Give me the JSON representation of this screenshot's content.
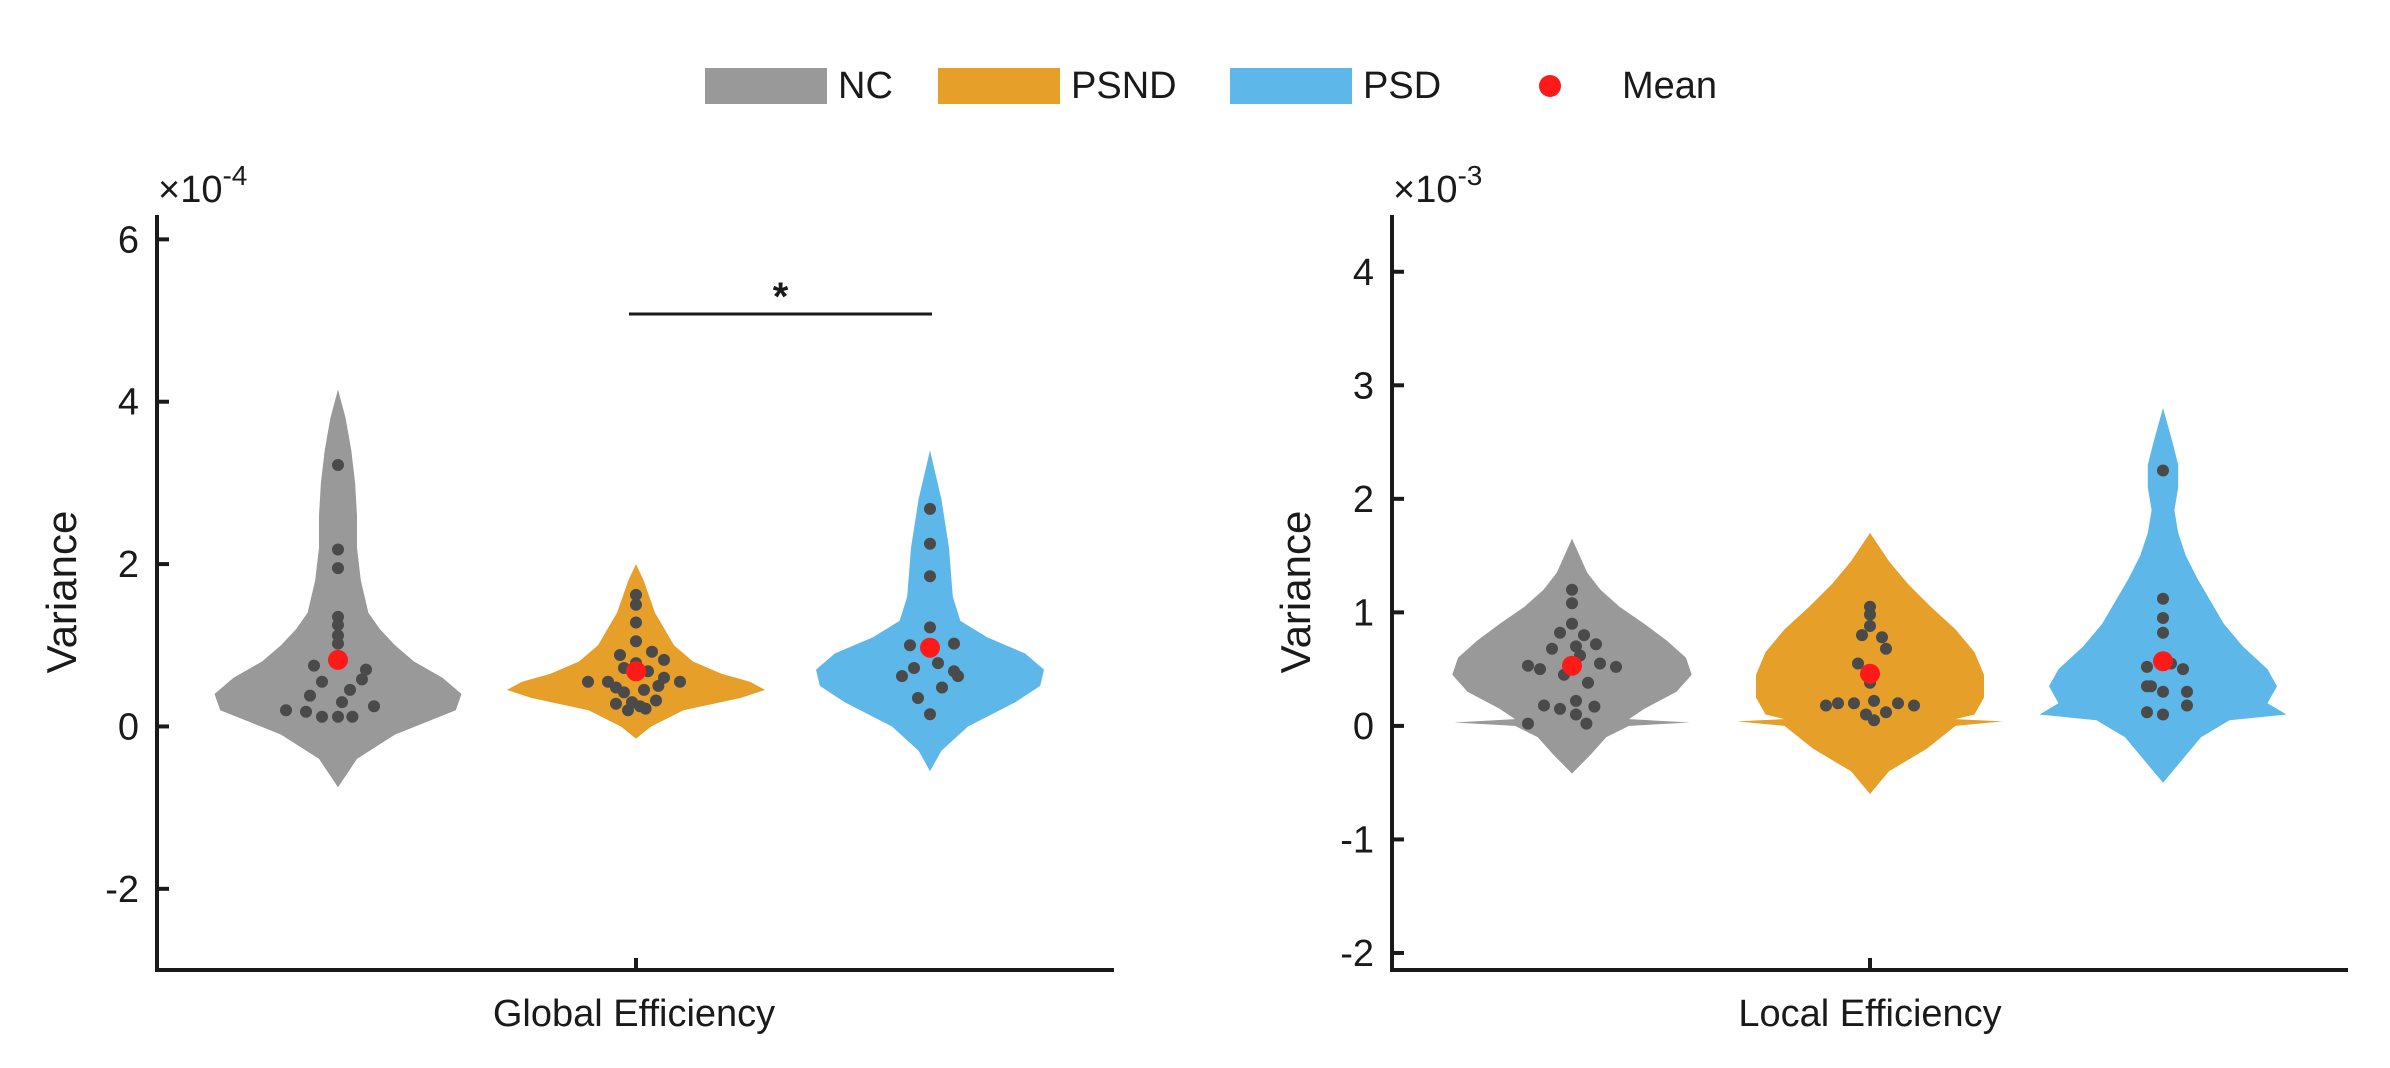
{
  "legend": {
    "items": [
      {
        "label": "NC",
        "color": "#999999",
        "kind": "patch"
      },
      {
        "label": "PSND",
        "color": "#E6A02A",
        "kind": "patch"
      },
      {
        "label": "PSD",
        "color": "#5DB7E8",
        "kind": "patch"
      },
      {
        "label": "Mean",
        "color": "#FF1A1A",
        "kind": "dot"
      }
    ]
  },
  "chart_data": [
    {
      "type": "violin",
      "xlabel": "Global Efficiency",
      "ylabel": "Variance",
      "exponent_label": "×10",
      "exponent_power": "-4",
      "ylim": [
        -3,
        6.3
      ],
      "yticks": [
        -2,
        0,
        2,
        4,
        6
      ],
      "ytick_labels": [
        "-2",
        "0",
        "2",
        "4",
        "6"
      ],
      "groups": [
        {
          "name": "NC",
          "color": "#999999",
          "mean": 0.82,
          "kde_y": [
            -0.75,
            -0.4,
            -0.1,
            0.2,
            0.4,
            0.6,
            0.8,
            1.0,
            1.2,
            1.4,
            1.8,
            2.2,
            2.6,
            3.0,
            3.4,
            3.8,
            4.15
          ],
          "kde_w": [
            0.0,
            0.1,
            0.3,
            0.62,
            0.65,
            0.55,
            0.4,
            0.3,
            0.22,
            0.16,
            0.12,
            0.1,
            0.1,
            0.09,
            0.07,
            0.04,
            0.0
          ],
          "points": [
            [
              3.22,
              0
            ],
            [
              2.18,
              0
            ],
            [
              1.95,
              0
            ],
            [
              1.35,
              0
            ],
            [
              1.25,
              0
            ],
            [
              1.12,
              0
            ],
            [
              1.02,
              0
            ],
            [
              0.75,
              -0.3
            ],
            [
              0.7,
              0.35
            ],
            [
              0.58,
              0.3
            ],
            [
              0.55,
              -0.2
            ],
            [
              0.45,
              0.15
            ],
            [
              0.38,
              -0.35
            ],
            [
              0.3,
              0.05
            ],
            [
              0.25,
              0.45
            ],
            [
              0.2,
              -0.65
            ],
            [
              0.18,
              -0.4
            ],
            [
              0.12,
              0.18
            ],
            [
              0.12,
              0.0
            ],
            [
              0.12,
              -0.2
            ]
          ]
        },
        {
          "name": "PSND",
          "color": "#E6A02A",
          "mean": 0.68,
          "kde_y": [
            -0.15,
            0.0,
            0.2,
            0.35,
            0.45,
            0.55,
            0.65,
            0.8,
            1.0,
            1.2,
            1.4,
            1.6,
            1.8,
            2.0
          ],
          "kde_w": [
            0.0,
            0.08,
            0.25,
            0.55,
            0.68,
            0.6,
            0.45,
            0.3,
            0.2,
            0.15,
            0.1,
            0.07,
            0.04,
            0.0
          ],
          "points": [
            [
              1.62,
              0
            ],
            [
              1.5,
              0
            ],
            [
              1.28,
              0
            ],
            [
              1.05,
              0
            ],
            [
              0.92,
              0.2
            ],
            [
              0.88,
              -0.2
            ],
            [
              0.82,
              0.35
            ],
            [
              0.78,
              0.0
            ],
            [
              0.72,
              -0.15
            ],
            [
              0.68,
              0.15
            ],
            [
              0.6,
              0.35
            ],
            [
              0.55,
              -0.35
            ],
            [
              0.5,
              0.28
            ],
            [
              0.48,
              -0.25
            ],
            [
              0.45,
              0.1
            ],
            [
              0.42,
              -0.15
            ],
            [
              0.32,
              0.25
            ],
            [
              0.3,
              -0.05
            ],
            [
              0.28,
              -0.25
            ],
            [
              0.25,
              0.05
            ],
            [
              0.22,
              0.12
            ],
            [
              0.2,
              -0.1
            ],
            [
              0.55,
              -0.6
            ],
            [
              0.55,
              0.55
            ]
          ]
        },
        {
          "name": "PSD",
          "color": "#5DB7E8",
          "mean": 0.97,
          "kde_y": [
            -0.55,
            -0.3,
            0.0,
            0.3,
            0.5,
            0.7,
            0.9,
            1.1,
            1.3,
            1.6,
            1.9,
            2.2,
            2.5,
            2.8,
            3.1,
            3.4
          ],
          "kde_w": [
            0.0,
            0.06,
            0.2,
            0.45,
            0.58,
            0.6,
            0.5,
            0.3,
            0.16,
            0.12,
            0.11,
            0.1,
            0.08,
            0.06,
            0.03,
            0.0
          ],
          "points": [
            [
              2.68,
              0
            ],
            [
              2.25,
              0
            ],
            [
              1.85,
              0
            ],
            [
              1.22,
              0
            ],
            [
              1.02,
              0.3
            ],
            [
              1.0,
              -0.25
            ],
            [
              0.78,
              0.1
            ],
            [
              0.72,
              -0.2
            ],
            [
              0.68,
              0.3
            ],
            [
              0.62,
              -0.35
            ],
            [
              0.48,
              0.15
            ],
            [
              0.35,
              -0.15
            ],
            [
              0.15,
              0.0
            ],
            [
              0.62,
              0.35
            ]
          ]
        }
      ],
      "significance": {
        "label": "*",
        "from_group": 1,
        "to_group": 2,
        "y": 5.08
      }
    },
    {
      "type": "violin",
      "xlabel": "Local Efficiency",
      "ylabel": "Variance",
      "exponent_label": "×10",
      "exponent_power": "-3",
      "ylim": [
        -2.15,
        4.5
      ],
      "yticks": [
        -2,
        -1,
        0,
        1,
        2,
        3,
        4
      ],
      "ytick_labels": [
        "-2",
        "-1",
        "0",
        "1",
        "2",
        "3",
        "4"
      ],
      "groups": [
        {
          "name": "NC",
          "color": "#999999",
          "mean": 0.53,
          "kde_y": [
            -0.42,
            -0.25,
            -0.1,
            0.0,
            0.03,
            0.06,
            0.15,
            0.3,
            0.45,
            0.6,
            0.75,
            0.9,
            1.05,
            1.2,
            1.35,
            1.5,
            1.65
          ],
          "kde_w": [
            0.0,
            0.1,
            0.18,
            0.3,
            0.62,
            0.3,
            0.38,
            0.55,
            0.63,
            0.6,
            0.5,
            0.38,
            0.25,
            0.15,
            0.08,
            0.04,
            0.0
          ],
          "points": [
            [
              1.2,
              0
            ],
            [
              1.08,
              0
            ],
            [
              0.9,
              0.0
            ],
            [
              0.82,
              -0.15
            ],
            [
              0.8,
              0.15
            ],
            [
              0.72,
              0.3
            ],
            [
              0.7,
              0.05
            ],
            [
              0.68,
              -0.25
            ],
            [
              0.62,
              0.1
            ],
            [
              0.55,
              0.35
            ],
            [
              0.53,
              -0.55
            ],
            [
              0.52,
              0.55
            ],
            [
              0.5,
              -0.4
            ],
            [
              0.45,
              -0.1
            ],
            [
              0.38,
              0.2
            ],
            [
              0.22,
              0.05
            ],
            [
              0.18,
              -0.35
            ],
            [
              0.17,
              0.28
            ],
            [
              0.15,
              -0.15
            ],
            [
              0.1,
              0.05
            ],
            [
              0.02,
              -0.55
            ],
            [
              0.02,
              0.18
            ]
          ]
        },
        {
          "name": "PSND",
          "color": "#E6A02A",
          "mean": 0.46,
          "kde_y": [
            -0.6,
            -0.4,
            -0.2,
            0.0,
            0.04,
            0.06,
            0.1,
            0.25,
            0.45,
            0.65,
            0.85,
            1.05,
            1.25,
            1.45,
            1.7
          ],
          "kde_w": [
            0.0,
            0.1,
            0.3,
            0.45,
            0.7,
            0.45,
            0.55,
            0.6,
            0.6,
            0.55,
            0.45,
            0.32,
            0.2,
            0.1,
            0.0
          ],
          "points": [
            [
              1.05,
              0
            ],
            [
              0.98,
              0
            ],
            [
              0.88,
              0
            ],
            [
              0.8,
              -0.1
            ],
            [
              0.78,
              0.15
            ],
            [
              0.68,
              0.2
            ],
            [
              0.55,
              -0.15
            ],
            [
              0.38,
              0.0
            ],
            [
              0.22,
              0.05
            ],
            [
              0.2,
              -0.2
            ],
            [
              0.2,
              -0.4
            ],
            [
              0.2,
              0.35
            ],
            [
              0.18,
              -0.55
            ],
            [
              0.18,
              0.55
            ],
            [
              0.12,
              0.2
            ],
            [
              0.1,
              -0.05
            ],
            [
              0.05,
              0.05
            ]
          ]
        },
        {
          "name": "PSD",
          "color": "#5DB7E8",
          "mean": 0.57,
          "kde_y": [
            -0.5,
            -0.3,
            -0.1,
            0.05,
            0.1,
            0.2,
            0.35,
            0.5,
            0.7,
            0.9,
            1.1,
            1.3,
            1.5,
            1.7,
            1.9,
            2.1,
            2.3,
            2.5,
            2.8
          ],
          "kde_w": [
            0.0,
            0.1,
            0.2,
            0.35,
            0.65,
            0.55,
            0.6,
            0.55,
            0.42,
            0.32,
            0.25,
            0.18,
            0.12,
            0.08,
            0.06,
            0.08,
            0.08,
            0.05,
            0.0
          ],
          "points": [
            [
              2.25,
              0
            ],
            [
              1.12,
              0
            ],
            [
              0.95,
              0
            ],
            [
              0.82,
              0
            ],
            [
              0.55,
              0.1
            ],
            [
              0.52,
              -0.2
            ],
            [
              0.5,
              0.25
            ],
            [
              0.35,
              -0.2
            ],
            [
              0.3,
              0.0
            ],
            [
              0.3,
              0.3
            ],
            [
              0.18,
              0.3
            ],
            [
              0.12,
              -0.2
            ],
            [
              0.1,
              0.0
            ],
            [
              0.35,
              -0.15
            ]
          ]
        }
      ]
    }
  ]
}
